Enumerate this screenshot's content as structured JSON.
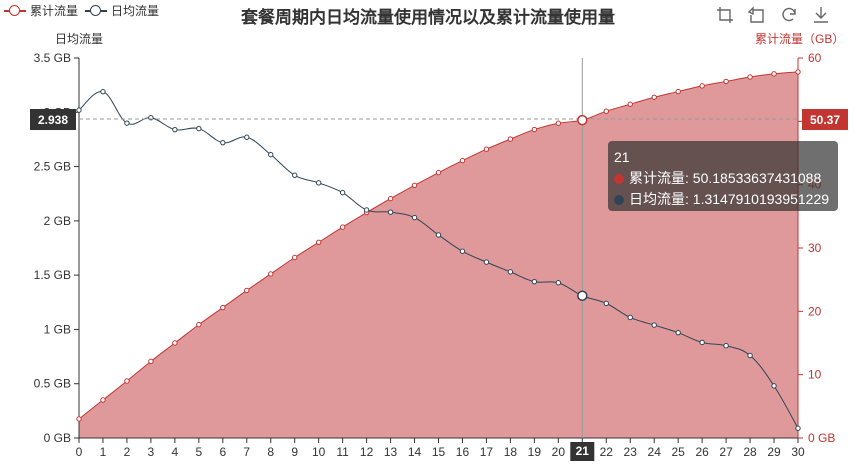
{
  "title": "套餐周期内日均流量使用情况以及累计流量使用量",
  "legend": [
    {
      "name": "累计流量",
      "color": "#c23531"
    },
    {
      "name": "日均流量",
      "color": "#2f4554"
    }
  ],
  "toolbox": [
    "zoom-icon",
    "zoom-reset-icon",
    "restore-icon",
    "save-image-icon"
  ],
  "colors": {
    "cumulative_line": "#c23531",
    "cumulative_area": "#e0999a",
    "daily_line": "#2f4554",
    "right_axis": "#c23531",
    "pointer_label_left_bg": "#333333",
    "pointer_label_right_bg": "#c23531"
  },
  "tooltip": {
    "header": "21",
    "rows": [
      {
        "name": "累计流量",
        "value": "50.18533637431088",
        "color": "#c23531"
      },
      {
        "name": "日均流量",
        "value": "1.3147910193951229",
        "color": "#2f4554"
      }
    ]
  },
  "axis_pointer": {
    "x_label": "21",
    "left_label": "2.938",
    "right_label": "50.37"
  },
  "chart_data": {
    "type": "line",
    "x": [
      0,
      1,
      2,
      3,
      4,
      5,
      6,
      7,
      8,
      9,
      10,
      11,
      12,
      13,
      14,
      15,
      16,
      17,
      18,
      19,
      20,
      21,
      22,
      23,
      24,
      25,
      26,
      27,
      28,
      29,
      30
    ],
    "xlim": [
      0,
      30
    ],
    "left_axis": {
      "name": "日均流量",
      "min": 0,
      "max": 3.5,
      "ticks": [
        0,
        0.5,
        1,
        1.5,
        2,
        2.5,
        3,
        3.5
      ],
      "tick_labels": [
        "0 GB",
        "0.5 GB",
        "1 GB",
        "1.5 GB",
        "2 GB",
        "2.5 GB",
        "3 GB",
        "3.5 GB"
      ]
    },
    "right_axis": {
      "name": "累计流量（GB）",
      "min": 0,
      "max": 60,
      "ticks": [
        0,
        10,
        20,
        30,
        40,
        50,
        60
      ],
      "tick_labels": [
        "0 GB",
        "10",
        "20",
        "30",
        "40",
        "50",
        "60"
      ]
    },
    "series": [
      {
        "name": "累计流量",
        "axis": "right",
        "area": true,
        "values": [
          3.0,
          6.0,
          9.0,
          12.1,
          15.0,
          17.9,
          20.6,
          23.3,
          25.9,
          28.5,
          30.9,
          33.3,
          35.6,
          37.8,
          39.9,
          41.9,
          43.8,
          45.6,
          47.2,
          48.7,
          49.7,
          50.19,
          51.6,
          52.7,
          53.8,
          54.7,
          55.6,
          56.3,
          57.0,
          57.5,
          57.8
        ]
      },
      {
        "name": "日均流量",
        "axis": "left",
        "area": false,
        "values": [
          3.02,
          3.19,
          2.9,
          2.95,
          2.84,
          2.85,
          2.72,
          2.77,
          2.61,
          2.42,
          2.35,
          2.26,
          2.1,
          2.08,
          2.03,
          1.87,
          1.72,
          1.62,
          1.53,
          1.44,
          1.43,
          1.31,
          1.24,
          1.11,
          1.04,
          0.97,
          0.88,
          0.85,
          0.76,
          0.48,
          0.09
        ]
      }
    ],
    "grid": false
  }
}
